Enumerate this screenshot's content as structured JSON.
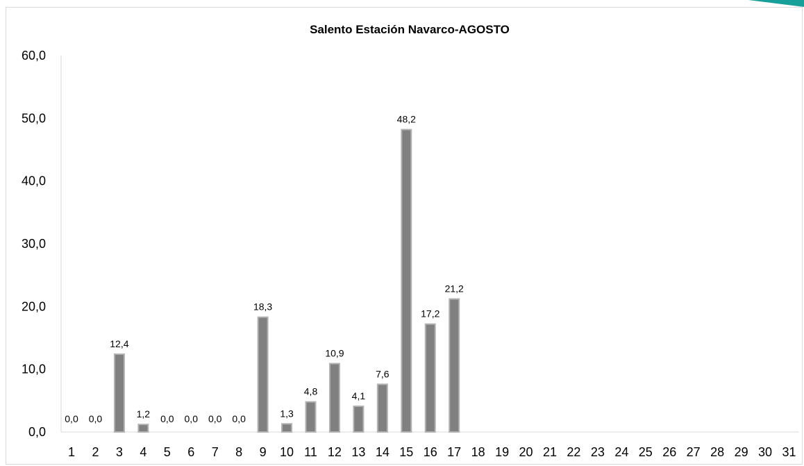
{
  "chart_data": {
    "type": "bar",
    "title": "Salento Estación Navarco-AGOSTO",
    "xlabel": "",
    "ylabel": "",
    "ylim": [
      0,
      60
    ],
    "yticks": [
      0,
      10,
      20,
      30,
      40,
      50,
      60
    ],
    "ytick_labels": [
      "0,0",
      "10,0",
      "20,0",
      "30,0",
      "40,0",
      "50,0",
      "60,0"
    ],
    "categories": [
      "1",
      "2",
      "3",
      "4",
      "5",
      "6",
      "7",
      "8",
      "9",
      "10",
      "11",
      "12",
      "13",
      "14",
      "15",
      "16",
      "17",
      "18",
      "19",
      "20",
      "21",
      "22",
      "23",
      "24",
      "25",
      "26",
      "27",
      "28",
      "29",
      "30",
      "31"
    ],
    "values": [
      0.0,
      0.0,
      12.4,
      1.2,
      0.0,
      0.0,
      0.0,
      0.0,
      18.3,
      1.3,
      4.8,
      10.9,
      4.1,
      7.6,
      48.2,
      17.2,
      21.2,
      null,
      null,
      null,
      null,
      null,
      null,
      null,
      null,
      null,
      null,
      null,
      null,
      null,
      null
    ],
    "data_labels": [
      "0,0",
      "0,0",
      "12,4",
      "1,2",
      "0,0",
      "0,0",
      "0,0",
      "0,0",
      "18,3",
      "1,3",
      "4,8",
      "10,9",
      "4,1",
      "7,6",
      "48,2",
      "17,2",
      "21,2",
      "",
      "",
      "",
      "",
      "",
      "",
      "",
      "",
      "",
      "",
      "",
      "",
      "",
      ""
    ],
    "grid": false,
    "legend": "none",
    "bar_color": "#808080",
    "bar_edge_color": "#b3b3b3"
  }
}
